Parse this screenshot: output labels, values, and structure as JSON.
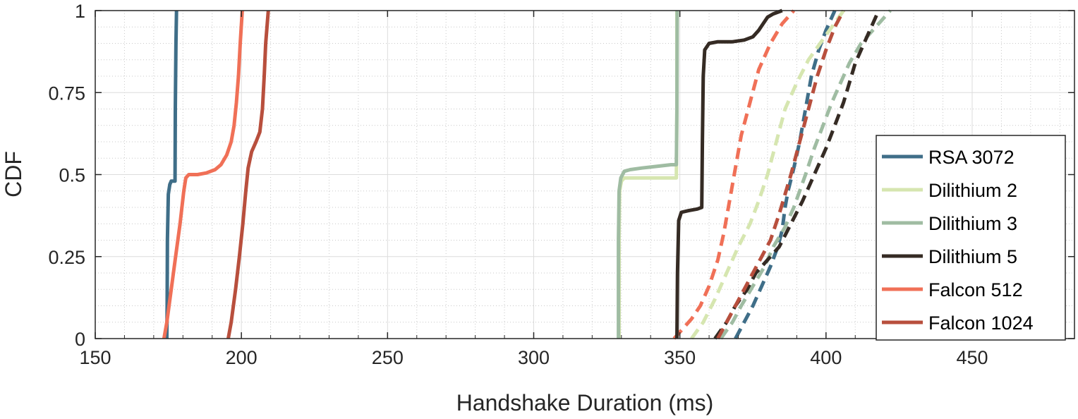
{
  "chart_data": {
    "type": "line",
    "title": "",
    "xlabel": "Handshake Duration (ms)",
    "ylabel": "CDF",
    "xlim": [
      150,
      485
    ],
    "ylim": [
      0,
      1
    ],
    "xticks": [
      150,
      200,
      250,
      300,
      350,
      400,
      450
    ],
    "xtick_labels": [
      "150",
      "200",
      "250",
      "300",
      "350",
      "400",
      "450"
    ],
    "yticks": [
      0,
      0.25,
      0.5,
      0.75,
      1
    ],
    "ytick_labels": [
      "0",
      "0.25",
      "0.5",
      "0.75",
      "1"
    ],
    "grid": true,
    "minor_grid": true,
    "legend_position": "right",
    "legend": [
      "RSA 3072",
      "Dilithium 2",
      "Dilithium 3",
      "Dilithium 5",
      "Falcon 512",
      "Falcon 1024"
    ],
    "series": [
      {
        "name": "RSA 3072",
        "style": "solid",
        "color": "#3f6e88",
        "points": [
          [
            174.5,
            0
          ],
          [
            174.6,
            0.1
          ],
          [
            174.7,
            0.3
          ],
          [
            175,
            0.44
          ],
          [
            175.5,
            0.47
          ],
          [
            176,
            0.48
          ],
          [
            177.3,
            0.48
          ],
          [
            177.4,
            0.7
          ],
          [
            177.6,
            0.9
          ],
          [
            177.8,
            1.0
          ]
        ]
      },
      {
        "name": "Dilithium 2",
        "style": "solid",
        "color": "#d6e6b0",
        "points": [
          [
            329.2,
            0
          ],
          [
            329.2,
            0.3
          ],
          [
            329.4,
            0.45
          ],
          [
            330,
            0.48
          ],
          [
            331,
            0.49
          ],
          [
            335,
            0.49
          ],
          [
            340,
            0.49
          ],
          [
            345,
            0.49
          ],
          [
            348.8,
            0.49
          ],
          [
            349,
            0.7
          ],
          [
            349,
            1.0
          ]
        ]
      },
      {
        "name": "Dilithium 3",
        "style": "solid",
        "color": "#9fbca2",
        "points": [
          [
            329,
            0
          ],
          [
            329,
            0.3
          ],
          [
            329.2,
            0.45
          ],
          [
            329.8,
            0.49
          ],
          [
            331,
            0.51
          ],
          [
            333,
            0.515
          ],
          [
            337,
            0.52
          ],
          [
            342,
            0.525
          ],
          [
            347,
            0.53
          ],
          [
            348.8,
            0.53
          ],
          [
            349,
            0.7
          ],
          [
            349.1,
            1.0
          ]
        ]
      },
      {
        "name": "Dilithium 5",
        "style": "solid",
        "color": "#352b24",
        "points": [
          [
            349,
            0
          ],
          [
            349.2,
            0.2
          ],
          [
            349.6,
            0.36
          ],
          [
            350.5,
            0.385
          ],
          [
            353,
            0.39
          ],
          [
            356,
            0.395
          ],
          [
            357.5,
            0.4
          ],
          [
            357.7,
            0.6
          ],
          [
            358,
            0.8
          ],
          [
            358.5,
            0.88
          ],
          [
            360,
            0.9
          ],
          [
            363,
            0.905
          ],
          [
            368,
            0.905
          ],
          [
            372,
            0.91
          ],
          [
            375,
            0.92
          ],
          [
            377,
            0.94
          ],
          [
            378.5,
            0.96
          ],
          [
            380,
            0.98
          ],
          [
            382,
            0.99
          ],
          [
            385,
            1.0
          ]
        ]
      },
      {
        "name": "Falcon 512",
        "style": "solid",
        "color": "#f07057",
        "points": [
          [
            173.5,
            0
          ],
          [
            174.5,
            0.05
          ],
          [
            176,
            0.15
          ],
          [
            177.5,
            0.25
          ],
          [
            179,
            0.35
          ],
          [
            180.3,
            0.45
          ],
          [
            181,
            0.49
          ],
          [
            182,
            0.5
          ],
          [
            185,
            0.5
          ],
          [
            188,
            0.505
          ],
          [
            191,
            0.515
          ],
          [
            193,
            0.53
          ],
          [
            195,
            0.56
          ],
          [
            196.5,
            0.6
          ],
          [
            197.5,
            0.65
          ],
          [
            198.3,
            0.72
          ],
          [
            199,
            0.8
          ],
          [
            199.6,
            0.9
          ],
          [
            200.3,
            1.0
          ]
        ]
      },
      {
        "name": "Falcon 1024",
        "style": "solid",
        "color": "#b84f3d",
        "points": [
          [
            195.5,
            0
          ],
          [
            196.5,
            0.05
          ],
          [
            198,
            0.15
          ],
          [
            199.3,
            0.25
          ],
          [
            200.5,
            0.35
          ],
          [
            201.5,
            0.45
          ],
          [
            202.3,
            0.52
          ],
          [
            203.5,
            0.57
          ],
          [
            205,
            0.6
          ],
          [
            206.3,
            0.63
          ],
          [
            207.2,
            0.7
          ],
          [
            207.8,
            0.8
          ],
          [
            208.3,
            0.9
          ],
          [
            209.2,
            1.0
          ]
        ]
      },
      {
        "name": "RSA 3072",
        "style": "dashed",
        "color": "#3f6e88",
        "points": [
          [
            369,
            0
          ],
          [
            372,
            0.05
          ],
          [
            375,
            0.1
          ],
          [
            378,
            0.16
          ],
          [
            381,
            0.22
          ],
          [
            383.5,
            0.28
          ],
          [
            385,
            0.33
          ],
          [
            386,
            0.4
          ],
          [
            387,
            0.45
          ],
          [
            389,
            0.52
          ],
          [
            391,
            0.6
          ],
          [
            393,
            0.7
          ],
          [
            395,
            0.8
          ],
          [
            397.5,
            0.88
          ],
          [
            400,
            0.94
          ],
          [
            403,
            1.0
          ]
        ]
      },
      {
        "name": "Dilithium 2",
        "style": "dashed",
        "color": "#d6e6b0",
        "points": [
          [
            354,
            0
          ],
          [
            358,
            0.05
          ],
          [
            362,
            0.12
          ],
          [
            366,
            0.2
          ],
          [
            370,
            0.28
          ],
          [
            374,
            0.35
          ],
          [
            377,
            0.42
          ],
          [
            380,
            0.5
          ],
          [
            383,
            0.6
          ],
          [
            386,
            0.7
          ],
          [
            390,
            0.78
          ],
          [
            394,
            0.85
          ],
          [
            398,
            0.9
          ],
          [
            402,
            0.95
          ],
          [
            406,
            1.0
          ]
        ]
      },
      {
        "name": "Dilithium 3",
        "style": "dashed",
        "color": "#9fbca2",
        "points": [
          [
            364,
            0
          ],
          [
            368,
            0.05
          ],
          [
            371,
            0.1
          ],
          [
            375,
            0.16
          ],
          [
            379,
            0.22
          ],
          [
            382,
            0.28
          ],
          [
            386,
            0.34
          ],
          [
            389,
            0.4
          ],
          [
            393,
            0.5
          ],
          [
            396,
            0.58
          ],
          [
            399,
            0.65
          ],
          [
            402,
            0.72
          ],
          [
            405,
            0.78
          ],
          [
            408,
            0.84
          ],
          [
            412,
            0.9
          ],
          [
            417,
            0.95
          ],
          [
            422,
            1.0
          ]
        ]
      },
      {
        "name": "Dilithium 5",
        "style": "dashed",
        "color": "#352b24",
        "points": [
          [
            362,
            0
          ],
          [
            366,
            0.05
          ],
          [
            369,
            0.1
          ],
          [
            373,
            0.15
          ],
          [
            376,
            0.2
          ],
          [
            380,
            0.24
          ],
          [
            384,
            0.28
          ],
          [
            388,
            0.35
          ],
          [
            392,
            0.42
          ],
          [
            396,
            0.5
          ],
          [
            400,
            0.58
          ],
          [
            403,
            0.65
          ],
          [
            406,
            0.72
          ],
          [
            408,
            0.78
          ],
          [
            410,
            0.84
          ],
          [
            413,
            0.9
          ],
          [
            416,
            0.96
          ],
          [
            418,
            1.0
          ]
        ]
      },
      {
        "name": "Falcon 512",
        "style": "dashed",
        "color": "#f07057",
        "points": [
          [
            348,
            0
          ],
          [
            351,
            0.03
          ],
          [
            354,
            0.06
          ],
          [
            357,
            0.1
          ],
          [
            360,
            0.16
          ],
          [
            363,
            0.24
          ],
          [
            365,
            0.32
          ],
          [
            367,
            0.42
          ],
          [
            369,
            0.52
          ],
          [
            371,
            0.62
          ],
          [
            374,
            0.72
          ],
          [
            377,
            0.82
          ],
          [
            381,
            0.9
          ],
          [
            385,
            0.96
          ],
          [
            389,
            1.0
          ]
        ]
      },
      {
        "name": "Falcon 1024",
        "style": "dashed",
        "color": "#b84f3d",
        "points": [
          [
            363,
            0
          ],
          [
            366,
            0.05
          ],
          [
            369,
            0.1
          ],
          [
            372,
            0.15
          ],
          [
            375,
            0.2
          ],
          [
            378,
            0.25
          ],
          [
            381,
            0.3
          ],
          [
            384,
            0.38
          ],
          [
            386,
            0.44
          ],
          [
            388,
            0.5
          ],
          [
            391,
            0.6
          ],
          [
            394,
            0.7
          ],
          [
            397,
            0.8
          ],
          [
            400,
            0.88
          ],
          [
            403,
            0.95
          ],
          [
            406,
            1.0
          ]
        ]
      }
    ]
  }
}
